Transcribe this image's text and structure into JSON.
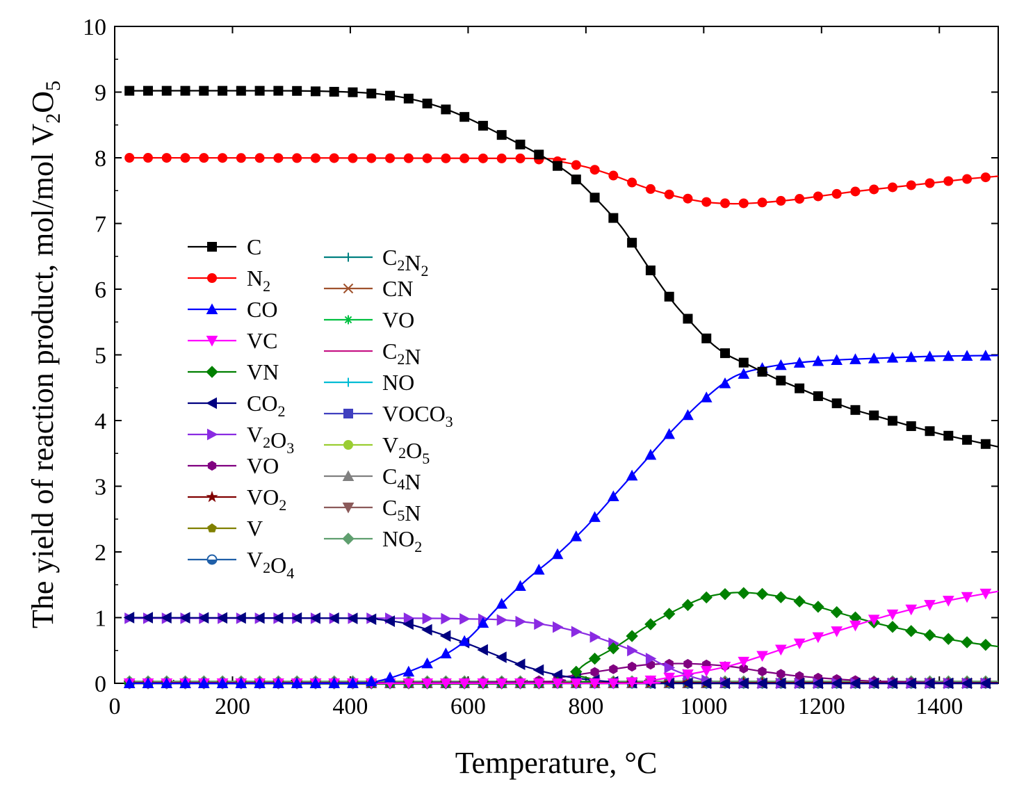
{
  "chart_data": {
    "type": "line",
    "xlabel": "Temperature, °C",
    "ylabel": "The yield of reaction product, mol/mol V2O5",
    "ylabel_parts": {
      "base": "The yield of reaction product, mol/mol V",
      "sub1": "2",
      "mid": "O",
      "sub2": "5"
    },
    "xlim": [
      0,
      1500
    ],
    "ylim": [
      0,
      10
    ],
    "xticks": [
      "0",
      "200",
      "400",
      "600",
      "800",
      "1000",
      "1200",
      "1400"
    ],
    "xtick_values": [
      0,
      200,
      400,
      600,
      800,
      1000,
      1200,
      1400
    ],
    "yticks": [
      "0",
      "1",
      "2",
      "3",
      "4",
      "5",
      "6",
      "7",
      "8",
      "9",
      "10"
    ],
    "ytick_values": [
      0,
      1,
      2,
      3,
      4,
      5,
      6,
      7,
      8,
      9,
      10
    ],
    "legend_placement": "center-left",
    "series": [
      {
        "name": "C",
        "text": "C",
        "color": "#000000",
        "marker": "square",
        "points": [
          [
            25,
            9.02
          ],
          [
            300,
            9.02
          ],
          [
            400,
            9.0
          ],
          [
            450,
            8.97
          ],
          [
            500,
            8.9
          ],
          [
            550,
            8.78
          ],
          [
            600,
            8.6
          ],
          [
            650,
            8.38
          ],
          [
            700,
            8.15
          ],
          [
            740,
            7.95
          ],
          [
            780,
            7.7
          ],
          [
            820,
            7.35
          ],
          [
            860,
            6.95
          ],
          [
            890,
            6.55
          ],
          [
            920,
            6.15
          ],
          [
            950,
            5.78
          ],
          [
            980,
            5.48
          ],
          [
            1010,
            5.2
          ],
          [
            1040,
            5.0
          ],
          [
            1080,
            4.83
          ],
          [
            1120,
            4.65
          ],
          [
            1160,
            4.5
          ],
          [
            1200,
            4.35
          ],
          [
            1250,
            4.18
          ],
          [
            1300,
            4.05
          ],
          [
            1350,
            3.92
          ],
          [
            1400,
            3.8
          ],
          [
            1450,
            3.7
          ],
          [
            1500,
            3.6
          ]
        ]
      },
      {
        "name": "N2",
        "text": "N",
        "sub": "2",
        "color": "#ff0000",
        "marker": "circle",
        "points": [
          [
            25,
            8.0
          ],
          [
            700,
            7.99
          ],
          [
            750,
            7.95
          ],
          [
            800,
            7.86
          ],
          [
            850,
            7.72
          ],
          [
            900,
            7.55
          ],
          [
            950,
            7.42
          ],
          [
            1000,
            7.33
          ],
          [
            1050,
            7.3
          ],
          [
            1100,
            7.32
          ],
          [
            1150,
            7.36
          ],
          [
            1200,
            7.42
          ],
          [
            1250,
            7.48
          ],
          [
            1300,
            7.53
          ],
          [
            1350,
            7.58
          ],
          [
            1400,
            7.63
          ],
          [
            1450,
            7.68
          ],
          [
            1500,
            7.72
          ]
        ]
      },
      {
        "name": "CO",
        "text": "CO",
        "color": "#0000ff",
        "marker": "triangle-up",
        "points": [
          [
            25,
            0.0
          ],
          [
            400,
            0.0
          ],
          [
            450,
            0.04
          ],
          [
            500,
            0.18
          ],
          [
            550,
            0.38
          ],
          [
            600,
            0.68
          ],
          [
            650,
            1.15
          ],
          [
            700,
            1.58
          ],
          [
            750,
            1.95
          ],
          [
            800,
            2.38
          ],
          [
            850,
            2.88
          ],
          [
            900,
            3.38
          ],
          [
            950,
            3.88
          ],
          [
            1000,
            4.32
          ],
          [
            1050,
            4.66
          ],
          [
            1100,
            4.8
          ],
          [
            1150,
            4.87
          ],
          [
            1200,
            4.91
          ],
          [
            1300,
            4.95
          ],
          [
            1400,
            4.98
          ],
          [
            1500,
            4.99
          ]
        ]
      },
      {
        "name": "VC",
        "text": "VC",
        "color": "#ff00ff",
        "marker": "triangle-down",
        "points": [
          [
            25,
            0.0
          ],
          [
            850,
            0.0
          ],
          [
            900,
            0.03
          ],
          [
            950,
            0.1
          ],
          [
            1000,
            0.18
          ],
          [
            1050,
            0.28
          ],
          [
            1100,
            0.42
          ],
          [
            1150,
            0.57
          ],
          [
            1200,
            0.72
          ],
          [
            1250,
            0.86
          ],
          [
            1300,
            1.0
          ],
          [
            1350,
            1.12
          ],
          [
            1400,
            1.23
          ],
          [
            1450,
            1.32
          ],
          [
            1500,
            1.4
          ]
        ]
      },
      {
        "name": "VN",
        "text": "VN",
        "color": "#008000",
        "marker": "diamond",
        "points": [
          [
            25,
            0.0
          ],
          [
            750,
            0.0
          ],
          [
            780,
            0.15
          ],
          [
            800,
            0.3
          ],
          [
            850,
            0.55
          ],
          [
            900,
            0.85
          ],
          [
            950,
            1.1
          ],
          [
            1000,
            1.3
          ],
          [
            1050,
            1.38
          ],
          [
            1100,
            1.36
          ],
          [
            1150,
            1.28
          ],
          [
            1200,
            1.15
          ],
          [
            1250,
            1.02
          ],
          [
            1300,
            0.9
          ],
          [
            1350,
            0.8
          ],
          [
            1400,
            0.7
          ],
          [
            1450,
            0.62
          ],
          [
            1500,
            0.56
          ]
        ]
      },
      {
        "name": "CO2",
        "text": "CO",
        "sub": "2",
        "color": "#000080",
        "marker": "triangle-left",
        "points": [
          [
            25,
            1.0
          ],
          [
            400,
            0.99
          ],
          [
            450,
            0.97
          ],
          [
            500,
            0.9
          ],
          [
            550,
            0.76
          ],
          [
            600,
            0.6
          ],
          [
            650,
            0.42
          ],
          [
            700,
            0.25
          ],
          [
            750,
            0.13
          ],
          [
            800,
            0.06
          ],
          [
            850,
            0.02
          ],
          [
            900,
            0.0
          ],
          [
            1500,
            0.0
          ]
        ]
      },
      {
        "name": "V2O3",
        "text": "V",
        "sub": "2",
        "text2": "O",
        "sub2": "3",
        "color": "#8a2be2",
        "marker": "triangle-right",
        "points": [
          [
            25,
            0.99
          ],
          [
            500,
            0.99
          ],
          [
            600,
            0.98
          ],
          [
            650,
            0.97
          ],
          [
            700,
            0.93
          ],
          [
            750,
            0.86
          ],
          [
            800,
            0.75
          ],
          [
            850,
            0.6
          ],
          [
            900,
            0.42
          ],
          [
            950,
            0.2
          ],
          [
            1000,
            0.05
          ],
          [
            1050,
            0.0
          ],
          [
            1500,
            0.0
          ]
        ]
      },
      {
        "name": "VO",
        "text": "VO",
        "color": "#800080",
        "marker": "hexagon",
        "points": [
          [
            25,
            0.0
          ],
          [
            700,
            0.02
          ],
          [
            750,
            0.08
          ],
          [
            800,
            0.15
          ],
          [
            850,
            0.22
          ],
          [
            900,
            0.28
          ],
          [
            950,
            0.3
          ],
          [
            1000,
            0.29
          ],
          [
            1050,
            0.25
          ],
          [
            1100,
            0.18
          ],
          [
            1150,
            0.12
          ],
          [
            1200,
            0.08
          ],
          [
            1250,
            0.05
          ],
          [
            1300,
            0.03
          ],
          [
            1400,
            0.01
          ],
          [
            1500,
            0.0
          ]
        ]
      },
      {
        "name": "VO2",
        "text": "VO",
        "sub": "2",
        "color": "#800000",
        "marker": "star",
        "points": [
          [
            25,
            0.01
          ],
          [
            1500,
            0.01
          ]
        ]
      },
      {
        "name": "V",
        "text": "V",
        "color": "#808000",
        "marker": "pentagon",
        "points": [
          [
            25,
            0.0
          ],
          [
            1500,
            0.0
          ]
        ]
      },
      {
        "name": "V2O4",
        "text": "V",
        "sub": "2",
        "text2": "O",
        "sub2": "4",
        "color": "#1f5fa8",
        "marker": "half-circle",
        "points": [
          [
            25,
            0.0
          ],
          [
            1500,
            0.0
          ]
        ]
      },
      {
        "name": "C2N2",
        "text": "C",
        "sub": "2",
        "text2": "N",
        "sub2": "2",
        "color": "#008080",
        "marker": "plus",
        "points": [
          [
            25,
            0.0
          ],
          [
            1500,
            0.0
          ]
        ]
      },
      {
        "name": "CN",
        "text": "CN",
        "color": "#a0522d",
        "marker": "x",
        "points": [
          [
            25,
            0.0
          ],
          [
            1500,
            0.0
          ]
        ]
      },
      {
        "name": "VO_gas",
        "text": "VO",
        "color": "#00c040",
        "marker": "asterisk",
        "points": [
          [
            25,
            0.0
          ],
          [
            1500,
            0.0
          ]
        ]
      },
      {
        "name": "C2N",
        "text": "C",
        "sub": "2",
        "text2": "N",
        "color": "#c71585",
        "marker": "none",
        "points": [
          [
            25,
            0.0
          ],
          [
            1500,
            0.0
          ]
        ]
      },
      {
        "name": "NO",
        "text": "NO",
        "color": "#00bcd4",
        "marker": "plus",
        "points": [
          [
            25,
            0.0
          ],
          [
            1500,
            0.0
          ]
        ]
      },
      {
        "name": "VOCO3",
        "text": "VOCO",
        "sub": "3",
        "color": "#3f3fbf",
        "marker": "square",
        "points": [
          [
            25,
            0.0
          ],
          [
            1500,
            0.0
          ]
        ]
      },
      {
        "name": "V2O5",
        "text": "V",
        "sub": "2",
        "text2": "O",
        "sub2": "5",
        "color": "#9acd32",
        "marker": "circle",
        "points": [
          [
            25,
            0.0
          ],
          [
            1500,
            0.0
          ]
        ]
      },
      {
        "name": "C4N",
        "text": "C",
        "sub": "4",
        "text2": "N",
        "color": "#808080",
        "marker": "triangle-up",
        "points": [
          [
            25,
            0.0
          ],
          [
            1500,
            0.0
          ]
        ]
      },
      {
        "name": "C5N",
        "text": "C",
        "sub": "5",
        "text2": "N",
        "color": "#8b5a5a",
        "marker": "triangle-down",
        "points": [
          [
            25,
            0.0
          ],
          [
            1500,
            0.0
          ]
        ]
      },
      {
        "name": "NO2",
        "text": "NO",
        "sub": "2",
        "color": "#5f9f6f",
        "marker": "diamond",
        "points": [
          [
            25,
            0.03
          ],
          [
            1500,
            0.03
          ]
        ]
      }
    ]
  }
}
